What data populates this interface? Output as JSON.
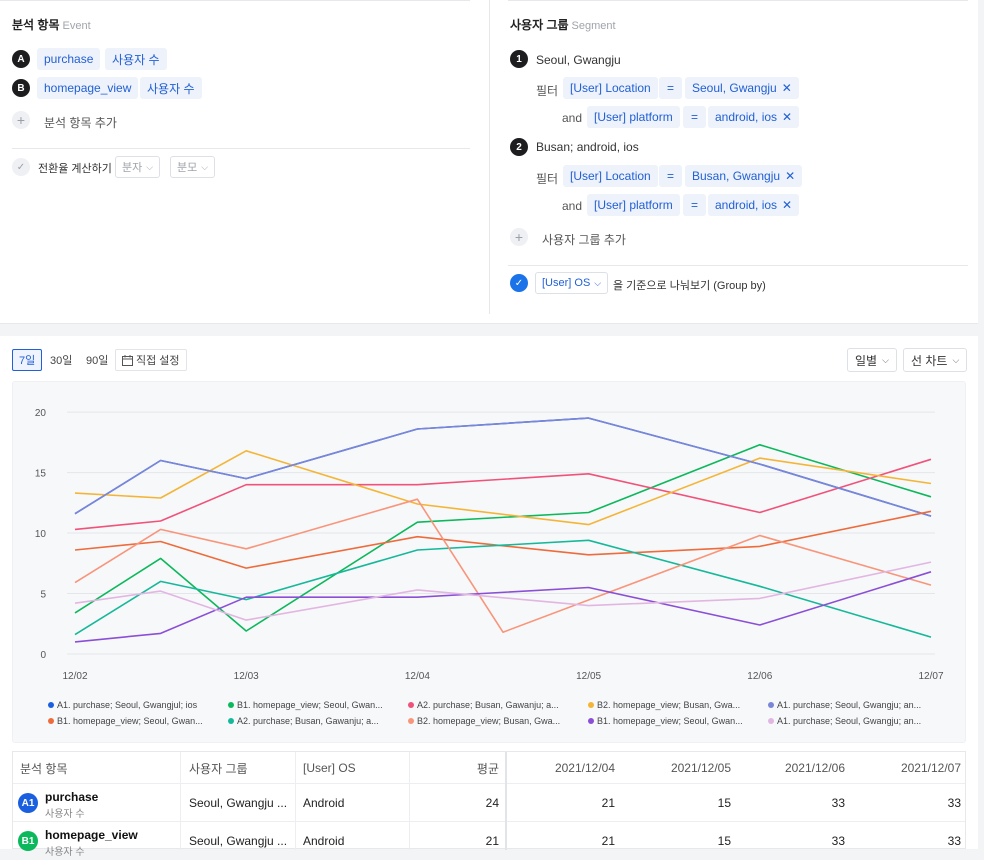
{
  "analysis": {
    "title": "분석 항목",
    "subtitle": "Event",
    "items": [
      {
        "letter": "A",
        "event": "purchase",
        "metric": "사용자 수"
      },
      {
        "letter": "B",
        "event": "homepage_view",
        "metric": "사용자 수"
      }
    ],
    "add_label": "분석 항목 추가",
    "conversion_label": "전환율 계산하기",
    "numerator": "분자",
    "denominator": "분모"
  },
  "segment": {
    "title": "사용자 그룹",
    "subtitle": "Segment",
    "filter_label": "필터",
    "and_label": "and",
    "eq": "=",
    "groups": [
      {
        "num": "1",
        "name": "Seoul, Gwangju",
        "filters": [
          {
            "field": "[User] Location",
            "value": "Seoul, Gwangju"
          },
          {
            "field": "[User] platform",
            "value": "android, ios"
          }
        ]
      },
      {
        "num": "2",
        "name": "Busan; android, ios",
        "filters": [
          {
            "field": "[User] Location",
            "value": "Busan, Gwangju"
          },
          {
            "field": "[User] platform",
            "value": "android, ios"
          }
        ]
      }
    ],
    "add_label": "사용자 그룹 추가",
    "groupby_field": "[User] OS",
    "groupby_label": "을 기준으로 나눠보기 (Group by)"
  },
  "toolbar": {
    "tabs": [
      "7일",
      "30일",
      "90일"
    ],
    "custom_label": "직접 설정",
    "interval": "일별",
    "chart_kind": "선 차트"
  },
  "chart_data": {
    "type": "line",
    "x": [
      "12/02",
      "12/03",
      "12/04",
      "12/05",
      "12/06",
      "12/07"
    ],
    "ylim": [
      0,
      21
    ],
    "yticks": [
      0,
      5,
      10,
      15,
      20
    ],
    "grid": true,
    "legend_position": "bottom",
    "series": [
      {
        "name": "A1. purchase; Seoul, Gwangjul; ios",
        "color": "#1a5fe0",
        "values": [
          [
            0,
            11.6
          ],
          [
            0.5,
            16.0
          ],
          [
            1,
            14.5
          ],
          [
            2,
            18.6
          ],
          [
            3,
            19.5
          ],
          [
            4,
            15.7
          ],
          [
            5,
            11.4
          ]
        ]
      },
      {
        "name": "B1. homepage_view; Seoul, Gwan...",
        "color": "#0cb85c",
        "values": [
          [
            0,
            3.4
          ],
          [
            0.5,
            7.9
          ],
          [
            1,
            1.9
          ],
          [
            2,
            10.9
          ],
          [
            3,
            11.7
          ],
          [
            4,
            17.3
          ],
          [
            5,
            13.0
          ]
        ]
      },
      {
        "name": "A2. purchase; Busan, Gawanju; a...",
        "color": "#f0527a",
        "values": [
          [
            0,
            10.3
          ],
          [
            0.5,
            11.0
          ],
          [
            1,
            14.0
          ],
          [
            2,
            14.0
          ],
          [
            3,
            14.9
          ],
          [
            4,
            11.7
          ],
          [
            5,
            16.1
          ]
        ]
      },
      {
        "name": "B2. homepage_view; Busan, Gwa...",
        "color": "#f4b537",
        "values": [
          [
            0,
            13.3
          ],
          [
            0.5,
            12.9
          ],
          [
            1,
            16.8
          ],
          [
            2,
            12.4
          ],
          [
            3,
            10.7
          ],
          [
            4,
            16.2
          ],
          [
            5,
            14.1
          ]
        ]
      },
      {
        "name": "A1. purchase; Seoul, Gwangju; an...",
        "color": "#7a86d8",
        "values": [
          [
            0,
            11.6
          ],
          [
            0.5,
            16.0
          ],
          [
            1,
            14.5
          ],
          [
            2,
            18.6
          ],
          [
            3,
            19.5
          ],
          [
            4,
            15.7
          ],
          [
            5,
            11.4
          ]
        ]
      },
      {
        "name": "B1. homepage_view; Seoul, Gwan...",
        "color": "#ee6b3b",
        "values": [
          [
            0,
            8.6
          ],
          [
            0.5,
            9.3
          ],
          [
            1,
            7.1
          ],
          [
            2,
            9.7
          ],
          [
            3,
            8.2
          ],
          [
            4,
            8.9
          ],
          [
            5,
            11.8
          ]
        ]
      },
      {
        "name": "A2. purchase; Busan, Gawanju; a...",
        "color": "#16b89a",
        "values": [
          [
            0,
            1.6
          ],
          [
            0.5,
            6.0
          ],
          [
            1,
            4.5
          ],
          [
            2,
            8.6
          ],
          [
            3,
            9.4
          ],
          [
            4,
            5.6
          ],
          [
            5,
            1.4
          ]
        ]
      },
      {
        "name": "B2. homepage_view; Busan, Gwa...",
        "color": "#f8957a",
        "values": [
          [
            0,
            5.9
          ],
          [
            0.5,
            10.3
          ],
          [
            1,
            8.7
          ],
          [
            2,
            12.8
          ],
          [
            2.5,
            1.8
          ],
          [
            4,
            9.8
          ],
          [
            5,
            5.7
          ]
        ]
      },
      {
        "name": "B1. homepage_view; Seoul, Gwan...",
        "color": "#8a4fd6",
        "values": [
          [
            0,
            1.0
          ],
          [
            0.5,
            1.7
          ],
          [
            1,
            4.7
          ],
          [
            2,
            4.7
          ],
          [
            3,
            5.5
          ],
          [
            4,
            2.4
          ],
          [
            5,
            6.8
          ]
        ]
      },
      {
        "name": "A1. purchase; Seoul, Gwangju; an...",
        "color": "#e2b6e2",
        "values": [
          [
            0,
            4.2
          ],
          [
            0.5,
            5.2
          ],
          [
            1,
            2.8
          ],
          [
            2,
            5.3
          ],
          [
            3,
            4.0
          ],
          [
            4,
            4.6
          ],
          [
            5,
            7.6
          ]
        ]
      }
    ]
  },
  "table": {
    "headers": [
      "분석 항목",
      "사용자 그룹",
      "[User] OS",
      "평균",
      "2021/12/04",
      "2021/12/05",
      "2021/12/06",
      "2021/12/07"
    ],
    "rows": [
      {
        "badge": "A1",
        "color": "#1a5fe0",
        "event": "purchase",
        "metric": "사용자 수",
        "segment": "Seoul, Gwangju ...",
        "os": "Android",
        "avg": "24",
        "d1": "21",
        "d2": "15",
        "d3": "33",
        "d4": "33"
      },
      {
        "badge": "B1",
        "color": "#0cb85c",
        "event": "homepage_view",
        "metric": "사용자 수",
        "segment": "Seoul, Gwangju ...",
        "os": "Android",
        "avg": "21",
        "d1": "21",
        "d2": "15",
        "d3": "33",
        "d4": "33"
      }
    ]
  }
}
